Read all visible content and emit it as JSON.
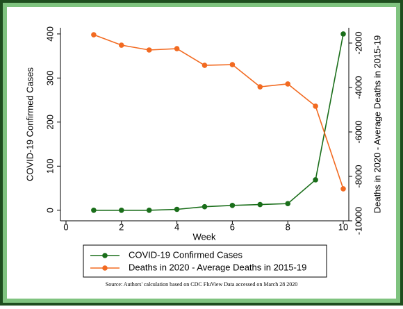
{
  "chart_data": {
    "type": "line",
    "x_label": "Week",
    "y_label": "COVID-19 Confirmed Cases",
    "y2_label": "Deaths in 2020 - Average Deaths in 2015-19",
    "source": "Source: Authors' calculation based on CDC FluView Data accessed on March 28 2020",
    "x": [
      1,
      2,
      3,
      4,
      5,
      6,
      7,
      8,
      9,
      10
    ],
    "series": [
      {
        "name": "COVID-19 Confirmed Cases",
        "color": "#1a6e1a",
        "values": [
          0,
          0,
          0,
          2,
          8,
          11,
          13,
          15,
          69,
          400
        ]
      },
      {
        "name": "Deaths in 2020 - Average Deaths in 2015-19",
        "color": "#f26a21",
        "axis": "y2",
        "values": [
          -1625,
          -2094,
          -2312,
          -2250,
          -3000,
          -2970,
          -3970,
          -3840,
          -4840,
          -8560
        ]
      }
    ],
    "xlim": [
      -0.2,
      10.2
    ],
    "xticks": [
      0,
      2,
      4,
      6,
      8,
      10
    ],
    "ylim": [
      -24,
      414
    ],
    "yticks": [
      0,
      100,
      200,
      300,
      400
    ],
    "y2lim": [
      -10000,
      -1312
    ],
    "y2ticks": [
      -10000,
      -8000,
      -6000,
      -4000,
      -2000
    ],
    "grid": false,
    "legend": "bottom"
  }
}
